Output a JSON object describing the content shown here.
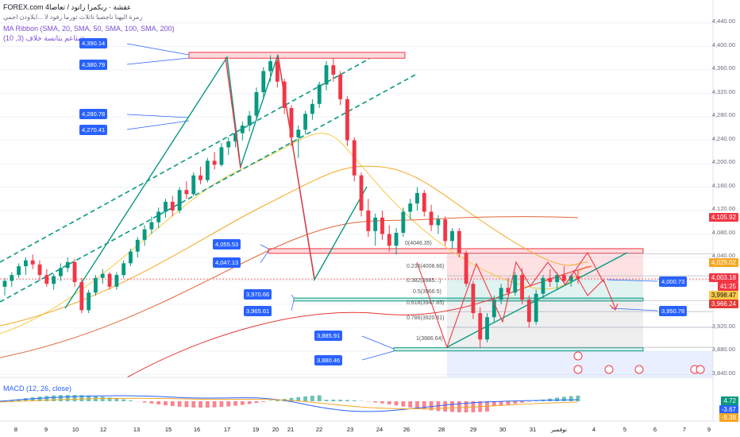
{
  "header": {
    "source": "FOREX.com",
    "source_extra": "4عقشة · ربكمرا راتود / تعاضا",
    "subtitle": "زمرة اليهنا ناجصبا تاثلاث تورما رفود لا ...ايلاودن اجمي",
    "ribbon_label": "MA Ribbon (SMA, 20, SMA, 50, SMA, 100, SMA, 200)",
    "extra_indicator": "ةتبثاعم يتانسة خلاف (3, 10)"
  },
  "macd_label": "MACD (12, 26, close)",
  "colors": {
    "up": "#089981",
    "down": "#f23645",
    "accent": "#2962ff",
    "sma20": "#f7c948",
    "sma50": "#f5a623",
    "sma100": "#e0663a",
    "sma200": "#e53935"
  },
  "y_axis_ticks": [
    "4,440.00",
    "4,400.00",
    "4,360.00",
    "4,320.00",
    "4,280.00",
    "4,240.00",
    "4,200.00",
    "4,160.00",
    "4,120.00",
    "4,080.00",
    "4,040.00",
    "3,920.00",
    "3,880.00",
    "3,840.00"
  ],
  "x_axis_ticks": [
    "8",
    "9",
    "10",
    "12",
    "13",
    "15",
    "16",
    "17",
    "19",
    "20",
    "21",
    "22",
    "23",
    "24",
    "26",
    "28",
    "29",
    "30",
    "31",
    "نوفمبر",
    "4",
    "5",
    "6",
    "7",
    "9"
  ],
  "price_tags": {
    "p4105": "4,105.92",
    "p4029": "4,029.02",
    "p4003": "4,003.18",
    "p_timer": "41:25",
    "p3998": "3,998.47",
    "p3966": "3,966.24"
  },
  "macd_tags": {
    "m1": "4.72",
    "m2": "-3.67",
    "m3": "-8.38"
  },
  "level_labels": {
    "l4390": "4,390.14",
    "l4380": "4,380.79",
    "l4280": "4,280.78",
    "l4270": "4,270.41",
    "l4055": "4,055.53",
    "l4047": "4,047.13",
    "l3970": "3,970.66",
    "l3965": "3,965.61",
    "l3885": "3,885.91",
    "l3880": "3,880.46",
    "l4000": "4,000.73",
    "l3950": "3,950.78"
  },
  "fib_labels": {
    "f0": "0(4046.35)",
    "f236": "0.236(4008.66)",
    "f382": "0.382(3985...)",
    "f5": "0.5(3966.5)",
    "f618": "0.618(3947.65)",
    "f786": "0.786(3920.81)",
    "f1": "1(3886.64)"
  },
  "chart_data": {
    "type": "candlestick",
    "symbol": "FOREX.com",
    "y_range": [
      3840,
      4440
    ],
    "levels": [
      4390.14,
      4380.79,
      4280.78,
      4270.41,
      4055.53,
      4047.13,
      3970.66,
      3965.61,
      3885.91,
      3880.46,
      4000.73,
      3950.78
    ],
    "last_price": 4003.18,
    "fibonacci": [
      {
        "ratio": 0,
        "price": 4046.35
      },
      {
        "ratio": 0.236,
        "price": 4008.66
      },
      {
        "ratio": 0.5,
        "price": 3966.5
      },
      {
        "ratio": 0.618,
        "price": 3947.65
      },
      {
        "ratio": 0.786,
        "price": 3920.81
      },
      {
        "ratio": 1,
        "price": 3886.64
      }
    ],
    "candles": [
      [
        3990,
        4005,
        3975,
        4000
      ],
      [
        4000,
        4015,
        3990,
        4010
      ],
      [
        4010,
        4030,
        4005,
        4025
      ],
      [
        4025,
        4040,
        4010,
        4035
      ],
      [
        4035,
        4045,
        4020,
        4028
      ],
      [
        4028,
        4035,
        4000,
        4010
      ],
      [
        4010,
        4020,
        3990,
        3995
      ],
      [
        3995,
        4012,
        3985,
        4008
      ],
      [
        4008,
        4030,
        4000,
        4022
      ],
      [
        4022,
        4040,
        4015,
        4032
      ],
      [
        4032,
        4038,
        3990,
        3998
      ],
      [
        3998,
        4005,
        3945,
        3950
      ],
      [
        3950,
        3985,
        3945,
        3980
      ],
      [
        3980,
        4010,
        3975,
        4005
      ],
      [
        4005,
        4020,
        3995,
        4012
      ],
      [
        4012,
        4015,
        3985,
        3990
      ],
      [
        3990,
        4015,
        3985,
        4010
      ],
      [
        4010,
        4035,
        4005,
        4030
      ],
      [
        4030,
        4055,
        4025,
        4050
      ],
      [
        4050,
        4075,
        4040,
        4070
      ],
      [
        4070,
        4095,
        4060,
        4088
      ],
      [
        4088,
        4110,
        4080,
        4100
      ],
      [
        4100,
        4125,
        4090,
        4118
      ],
      [
        4118,
        4140,
        4108,
        4135
      ],
      [
        4135,
        4145,
        4110,
        4120
      ],
      [
        4120,
        4160,
        4115,
        4155
      ],
      [
        4155,
        4170,
        4140,
        4148
      ],
      [
        4148,
        4185,
        4145,
        4180
      ],
      [
        4180,
        4195,
        4165,
        4172
      ],
      [
        4172,
        4210,
        4168,
        4205
      ],
      [
        4205,
        4220,
        4190,
        4198
      ],
      [
        4198,
        4235,
        4195,
        4228
      ],
      [
        4228,
        4245,
        4215,
        4238
      ],
      [
        4238,
        4260,
        4228,
        4252
      ],
      [
        4252,
        4272,
        4240,
        4265
      ],
      [
        4265,
        4290,
        4255,
        4282
      ],
      [
        4282,
        4330,
        4275,
        4322
      ],
      [
        4322,
        4365,
        4310,
        4358
      ],
      [
        4358,
        4385,
        4340,
        4375
      ],
      [
        4375,
        4380,
        4330,
        4340
      ],
      [
        4340,
        4345,
        4285,
        4295
      ],
      [
        4295,
        4300,
        4230,
        4245
      ],
      [
        4245,
        4265,
        4210,
        4258
      ],
      [
        4258,
        4290,
        4250,
        4285
      ],
      [
        4285,
        4310,
        4275,
        4302
      ],
      [
        4302,
        4340,
        4295,
        4335
      ],
      [
        4335,
        4375,
        4325,
        4368
      ],
      [
        4368,
        4380,
        4340,
        4352
      ],
      [
        4352,
        4358,
        4300,
        4310
      ],
      [
        4310,
        4315,
        4230,
        4240
      ],
      [
        4240,
        4245,
        4170,
        4180
      ],
      [
        4180,
        4185,
        4110,
        4120
      ],
      [
        4120,
        4140,
        4075,
        4085
      ],
      [
        4085,
        4115,
        4060,
        4108
      ],
      [
        4108,
        4120,
        4070,
        4080
      ],
      [
        4080,
        4095,
        4050,
        4060
      ],
      [
        4060,
        4090,
        4045,
        4082
      ],
      [
        4082,
        4125,
        4075,
        4118
      ],
      [
        4118,
        4140,
        4105,
        4132
      ],
      [
        4132,
        4160,
        4120,
        4150
      ],
      [
        4150,
        4155,
        4110,
        4118
      ],
      [
        4118,
        4130,
        4085,
        4095
      ],
      [
        4095,
        4112,
        4080,
        4105
      ],
      [
        4105,
        4110,
        4060,
        4068
      ],
      [
        4068,
        4090,
        4055,
        4085
      ],
      [
        4085,
        4090,
        4040,
        4048
      ],
      [
        4048,
        4052,
        3990,
        3995
      ],
      [
        3995,
        4000,
        3935,
        3945
      ],
      [
        3945,
        3955,
        3886,
        3900
      ],
      [
        3900,
        3945,
        3895,
        3938
      ],
      [
        3938,
        3975,
        3930,
        3968
      ],
      [
        3968,
        3995,
        3960,
        3988
      ],
      [
        3988,
        4005,
        3975,
        3980
      ],
      [
        3980,
        4015,
        3975,
        4010
      ],
      [
        4010,
        4022,
        3960,
        3968
      ],
      [
        3968,
        3975,
        3920,
        3930
      ],
      [
        3930,
        3985,
        3925,
        3978
      ],
      [
        3978,
        4010,
        3970,
        4005
      ],
      [
        4005,
        4020,
        3990,
        3998
      ],
      [
        3998,
        4015,
        3985,
        4010
      ],
      [
        4010,
        4025,
        3995,
        4000
      ],
      [
        4000,
        4012,
        3990,
        4008
      ],
      [
        4008,
        4018,
        3995,
        4003
      ]
    ]
  }
}
